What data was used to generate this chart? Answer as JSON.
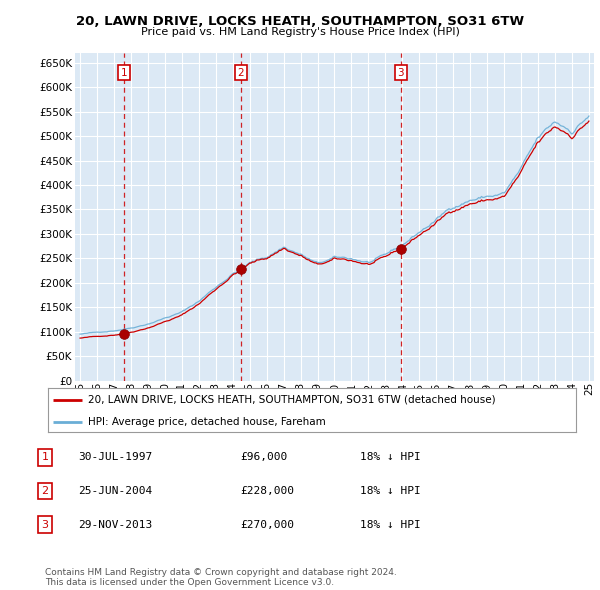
{
  "title": "20, LAWN DRIVE, LOCKS HEATH, SOUTHAMPTON, SO31 6TW",
  "subtitle": "Price paid vs. HM Land Registry's House Price Index (HPI)",
  "bg_color": "#ffffff",
  "plot_bg_color": "#dce9f5",
  "grid_color": "#ffffff",
  "sale_dates_num": [
    1997.57,
    2004.48,
    2013.91
  ],
  "sale_prices": [
    96000,
    228000,
    270000
  ],
  "sale_labels": [
    "1",
    "2",
    "3"
  ],
  "legend_entries": [
    "20, LAWN DRIVE, LOCKS HEATH, SOUTHAMPTON, SO31 6TW (detached house)",
    "HPI: Average price, detached house, Fareham"
  ],
  "table_rows": [
    [
      "1",
      "30-JUL-1997",
      "£96,000",
      "18% ↓ HPI"
    ],
    [
      "2",
      "25-JUN-2004",
      "£228,000",
      "18% ↓ HPI"
    ],
    [
      "3",
      "29-NOV-2013",
      "£270,000",
      "18% ↓ HPI"
    ]
  ],
  "footer": "Contains HM Land Registry data © Crown copyright and database right 2024.\nThis data is licensed under the Open Government Licence v3.0.",
  "ylim": [
    0,
    670000
  ],
  "yticks": [
    0,
    50000,
    100000,
    150000,
    200000,
    250000,
    300000,
    350000,
    400000,
    450000,
    500000,
    550000,
    600000,
    650000
  ],
  "xlim_start": 1994.7,
  "xlim_end": 2025.3,
  "xtick_years": [
    1995,
    1996,
    1997,
    1998,
    1999,
    2000,
    2001,
    2002,
    2003,
    2004,
    2005,
    2006,
    2007,
    2008,
    2009,
    2010,
    2011,
    2012,
    2013,
    2014,
    2015,
    2016,
    2017,
    2018,
    2019,
    2020,
    2021,
    2022,
    2023,
    2024,
    2025
  ],
  "red_line_color": "#cc0000",
  "blue_line_color": "#6aaed6"
}
